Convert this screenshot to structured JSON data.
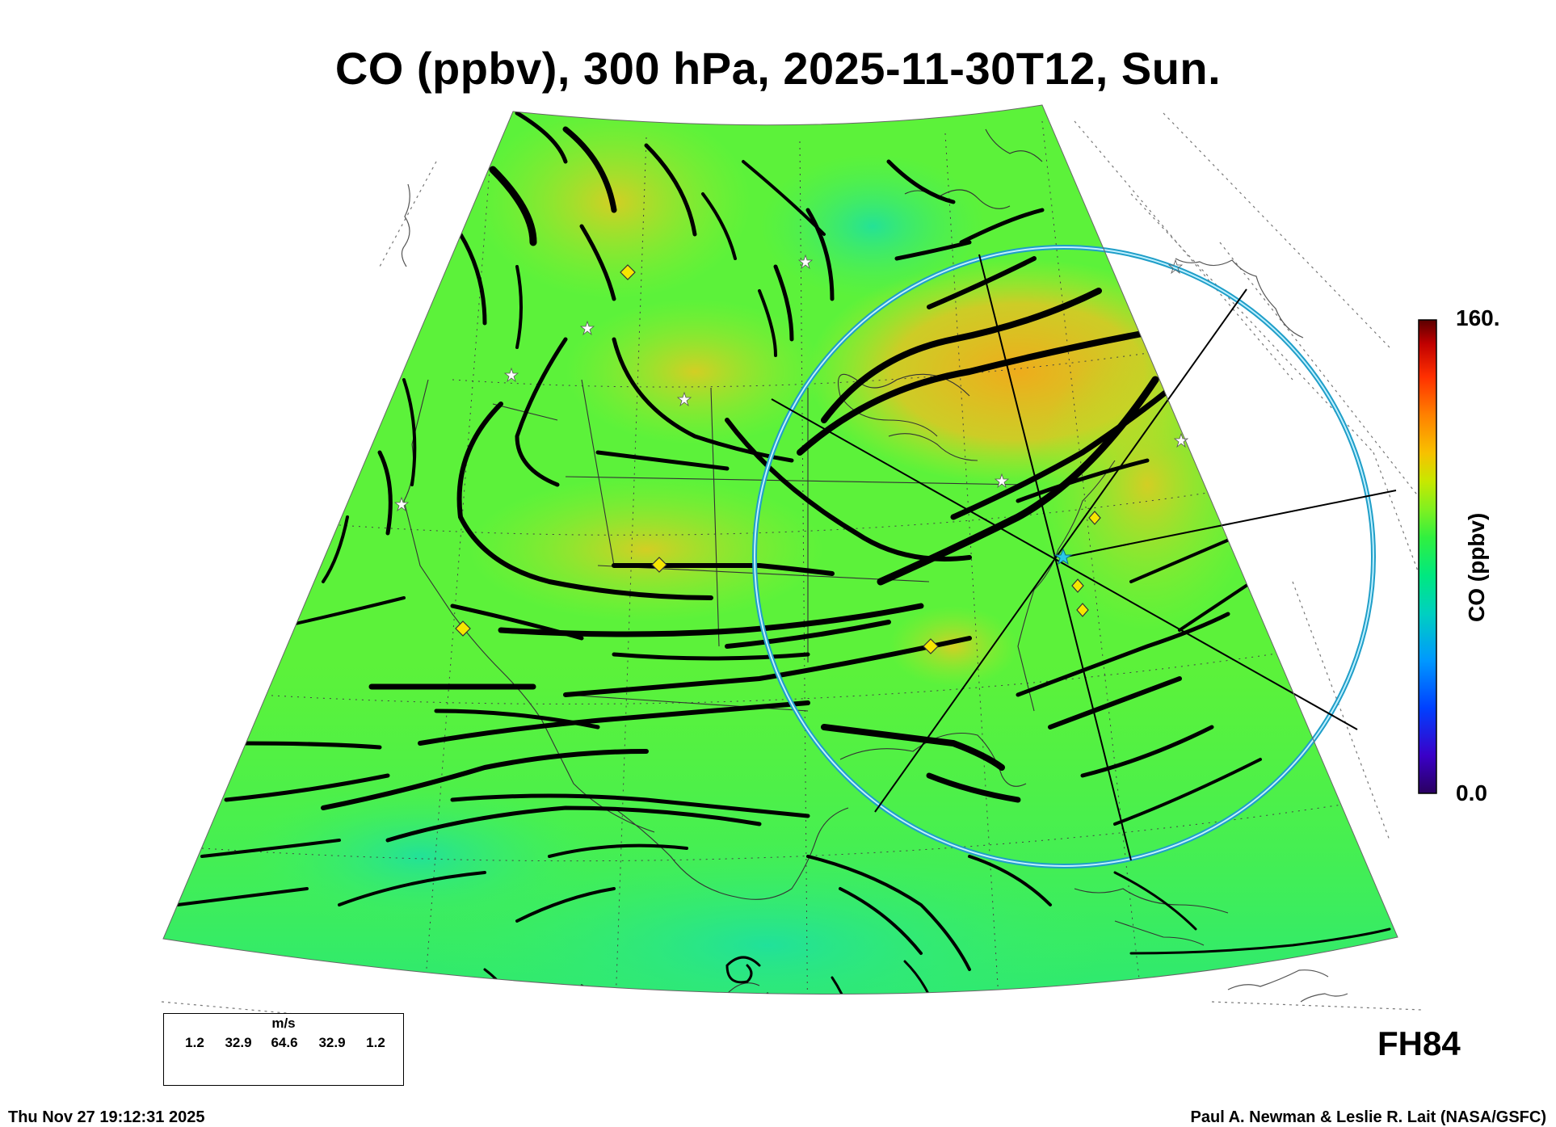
{
  "title": "CO (ppbv), 300 hPa, 2025-11-30T12, Sun.",
  "colorbar": {
    "title": "CO (ppbv)",
    "max_label": "160.",
    "min_label": "0.0",
    "min": 0,
    "max": 160,
    "colors": [
      "#2a0060",
      "#3a00c8",
      "#0040ff",
      "#0098ff",
      "#00d0c0",
      "#00e880",
      "#30f040",
      "#80f020",
      "#c8e800",
      "#f8c000",
      "#ff8000",
      "#ff3000",
      "#c00000",
      "#5a0000"
    ]
  },
  "forecast_hour": "FH84",
  "timestamp": "Thu Nov 27 19:12:31 2025",
  "credit": "Paul A. Newman & Leslie R. Lait (NASA/GSFC)",
  "wind_legend": {
    "unit": "m/s",
    "labels": [
      "1.2",
      "32.9",
      "64.6",
      "32.9",
      "1.2"
    ]
  },
  "map_colors": {
    "background_field": "#5cf23a",
    "high_co": "#f0b21e",
    "low_co": "#1ee68a",
    "range_ring": "#29b6d8",
    "station_marker": "#f5e600"
  },
  "icons": [
    "streamline-arrow-icon",
    "star-marker-icon",
    "diamond-marker-icon",
    "center-star-icon"
  ]
}
